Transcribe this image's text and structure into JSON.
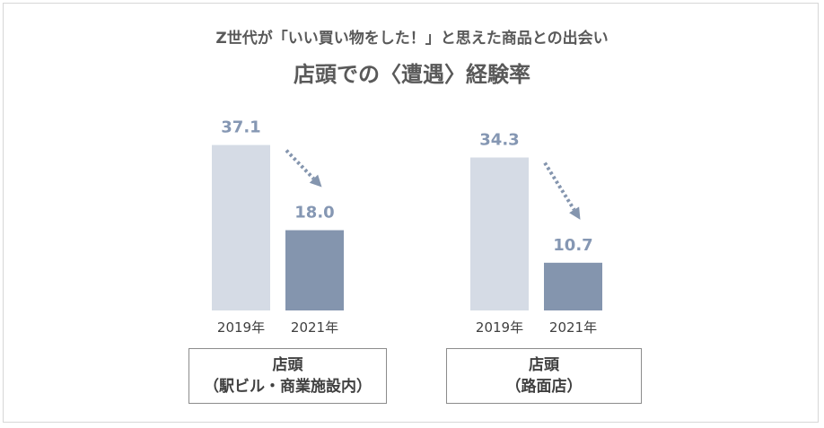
{
  "header": {
    "subtitle": "Z世代が「いい買い物をした！」と思えた商品との出会い",
    "title": "店頭での〈遭遇〉経験率"
  },
  "colors": {
    "bar_2019": "#d5dbe5",
    "bar_2021": "#8495ae",
    "value_label": "#8597b3",
    "arrow": "#8495ae"
  },
  "chart_data": [
    {
      "type": "bar",
      "categories": [
        "2019年",
        "2021年"
      ],
      "values": [
        37.1,
        18.0
      ],
      "value_labels": [
        "37.1",
        "18.0"
      ],
      "group_label_line1": "店頭",
      "group_label_line2": "（駅ビル・商業施設内）",
      "ylim": [
        0,
        40
      ]
    },
    {
      "type": "bar",
      "categories": [
        "2019年",
        "2021年"
      ],
      "values": [
        34.3,
        10.7
      ],
      "value_labels": [
        "34.3",
        "10.7"
      ],
      "group_label_line1": "店頭",
      "group_label_line2": "（路面店）",
      "ylim": [
        0,
        40
      ]
    }
  ]
}
